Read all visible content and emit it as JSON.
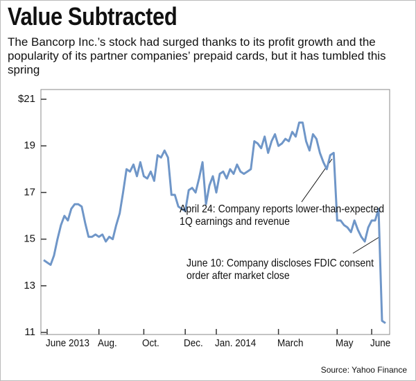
{
  "chart_data": {
    "type": "line",
    "title": "Value Subtracted",
    "subtitle": "The Bancorp Inc.’s stock had surged thanks to its profit growth and the popularity of its partner companies’ prepaid cards, but it has tumbled this spring",
    "source": "Source: Yahoo Finance",
    "color": "#6f96c8",
    "categories": [
      null,
      "June\n2013",
      null,
      null,
      null,
      null,
      null,
      null,
      null,
      null,
      null,
      null,
      null,
      null,
      null,
      null,
      "Aug.",
      null,
      null,
      null,
      null,
      null,
      null,
      null,
      null,
      null,
      null,
      null,
      null,
      "Oct.",
      null,
      null,
      null,
      null,
      null,
      null,
      null,
      null,
      null,
      null,
      null,
      "Dec.",
      null,
      null,
      null,
      null,
      null,
      null,
      null,
      null,
      "Jan.\n2014",
      null,
      null,
      null,
      null,
      null,
      null,
      null,
      null,
      null,
      null,
      null,
      null,
      null,
      null,
      null,
      null,
      null,
      "March",
      null,
      null,
      null,
      null,
      null,
      null,
      null,
      null,
      null,
      null,
      null,
      null,
      null,
      null,
      null,
      null,
      "May",
      null,
      null,
      null,
      null,
      null,
      null,
      null,
      null,
      null,
      "June",
      null,
      null,
      null,
      null
    ],
    "values": [
      14.1,
      14.0,
      13.9,
      14.3,
      15.0,
      15.6,
      16.0,
      15.8,
      16.3,
      16.5,
      16.5,
      16.4,
      15.7,
      15.1,
      15.1,
      15.2,
      15.1,
      15.2,
      14.9,
      15.1,
      15.0,
      15.6,
      16.1,
      17.0,
      18.0,
      17.9,
      18.2,
      17.7,
      18.3,
      17.7,
      17.6,
      17.9,
      17.5,
      18.6,
      18.5,
      18.8,
      18.5,
      16.9,
      16.9,
      16.4,
      16.3,
      16.2,
      17.1,
      17.2,
      17.0,
      17.6,
      18.3,
      16.5,
      17.3,
      17.7,
      17.0,
      17.8,
      17.9,
      17.6,
      18.0,
      17.8,
      18.2,
      17.9,
      17.8,
      17.9,
      18.0,
      19.2,
      19.1,
      18.9,
      19.4,
      18.7,
      19.2,
      19.5,
      19.0,
      19.1,
      19.3,
      19.2,
      19.6,
      19.4,
      20.0,
      20.0,
      19.2,
      18.8,
      19.5,
      19.3,
      18.7,
      18.3,
      18.0,
      18.6,
      18.7,
      15.8,
      15.8,
      15.6,
      15.5,
      15.3,
      15.8,
      15.4,
      15.1,
      14.9,
      15.5,
      15.8,
      15.8,
      16.3,
      11.5,
      11.4
    ],
    "ylim": [
      11,
      21
    ],
    "yticks": [
      11,
      13,
      15,
      17,
      19,
      {
        "value": 21,
        "label": "$21"
      }
    ],
    "annotations": [
      "April 24: Company reports\nlower-than-expected\n1Q earnings and revenue",
      "June 10: Company discloses FDIC\nconsent order after market close"
    ]
  }
}
